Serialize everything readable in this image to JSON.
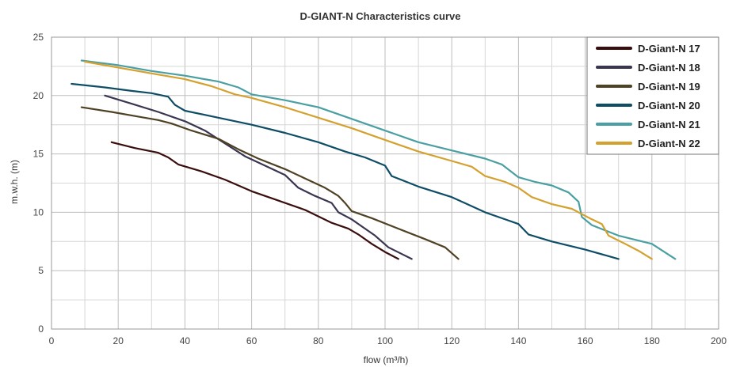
{
  "chart_data": {
    "type": "line",
    "title": "D-GIANT-N Characteristics curve",
    "xlabel": "flow (m³/h)",
    "ylabel": "m.w.h. (m)",
    "xlim": [
      0,
      200
    ],
    "ylim": [
      0,
      25
    ],
    "x_ticks": [
      0,
      20,
      40,
      60,
      80,
      100,
      120,
      140,
      160,
      180,
      200
    ],
    "y_ticks": [
      0,
      5,
      10,
      15,
      20,
      25
    ],
    "grid": true,
    "legend_position": "top-right",
    "series": [
      {
        "name": "D-Giant-N 17",
        "color": "#3a0d0d",
        "x": [
          18,
          25,
          32,
          35,
          38,
          45,
          52,
          60,
          68,
          76,
          84,
          89,
          92,
          96,
          100,
          104
        ],
        "y": [
          16,
          15.5,
          15.1,
          14.7,
          14.1,
          13.5,
          12.8,
          11.8,
          11,
          10.2,
          9.1,
          8.6,
          8.1,
          7.3,
          6.6,
          6
        ]
      },
      {
        "name": "D-Giant-N 18",
        "color": "#3a3550",
        "x": [
          16,
          24,
          32,
          40,
          46,
          52,
          58,
          64,
          70,
          74,
          79,
          84,
          86,
          90,
          93,
          97,
          101,
          108
        ],
        "y": [
          20,
          19.3,
          18.6,
          17.8,
          17,
          15.9,
          14.8,
          14,
          13.2,
          12.1,
          11.4,
          10.8,
          10,
          9.4,
          8.8,
          8,
          7,
          6
        ]
      },
      {
        "name": "D-Giant-N 19",
        "color": "#4f4124",
        "x": [
          9,
          18,
          26,
          32,
          36,
          42,
          50,
          56,
          62,
          70,
          76,
          82,
          86,
          88,
          90,
          96,
          104,
          112,
          118,
          122
        ],
        "y": [
          19,
          18.6,
          18.2,
          17.9,
          17.6,
          17,
          16.3,
          15.4,
          14.6,
          13.7,
          12.9,
          12.1,
          11.4,
          10.8,
          10.1,
          9.5,
          8.6,
          7.7,
          7,
          6
        ]
      },
      {
        "name": "D-Giant-N 20",
        "color": "#0e4d66",
        "x": [
          6,
          16,
          24,
          30,
          35,
          37,
          40,
          50,
          60,
          70,
          80,
          88,
          94,
          100,
          102,
          110,
          120,
          130,
          140,
          143,
          150,
          160,
          170
        ],
        "y": [
          21,
          20.7,
          20.4,
          20.2,
          19.9,
          19.2,
          18.7,
          18.1,
          17.5,
          16.8,
          16,
          15.2,
          14.7,
          14,
          13.1,
          12.2,
          11.3,
          10,
          9,
          8.1,
          7.5,
          6.8,
          6
        ]
      },
      {
        "name": "D-Giant-N 21",
        "color": "#4a9fa2",
        "x": [
          9,
          20,
          30,
          40,
          50,
          56,
          60,
          70,
          80,
          90,
          100,
          110,
          120,
          130,
          135,
          140,
          145,
          150,
          155,
          158,
          159,
          162,
          170,
          180,
          187
        ],
        "y": [
          23,
          22.6,
          22.1,
          21.7,
          21.2,
          20.7,
          20.1,
          19.6,
          19,
          18,
          17,
          16,
          15.3,
          14.6,
          14.1,
          13,
          12.6,
          12.3,
          11.7,
          10.9,
          9.6,
          8.9,
          8,
          7.3,
          6
        ]
      },
      {
        "name": "D-Giant-N 22",
        "color": "#d4a12e",
        "x": [
          10,
          20,
          30,
          40,
          48,
          55,
          60,
          70,
          80,
          90,
          100,
          110,
          120,
          126,
          130,
          136,
          140,
          144,
          150,
          156,
          162,
          165,
          167,
          172,
          176,
          180
        ],
        "y": [
          22.9,
          22.4,
          21.9,
          21.4,
          20.8,
          20.1,
          19.8,
          19,
          18.1,
          17.2,
          16.2,
          15.2,
          14.4,
          13.9,
          13.1,
          12.6,
          12.1,
          11.3,
          10.7,
          10.3,
          9.4,
          9,
          8,
          7.3,
          6.7,
          6
        ]
      }
    ]
  }
}
